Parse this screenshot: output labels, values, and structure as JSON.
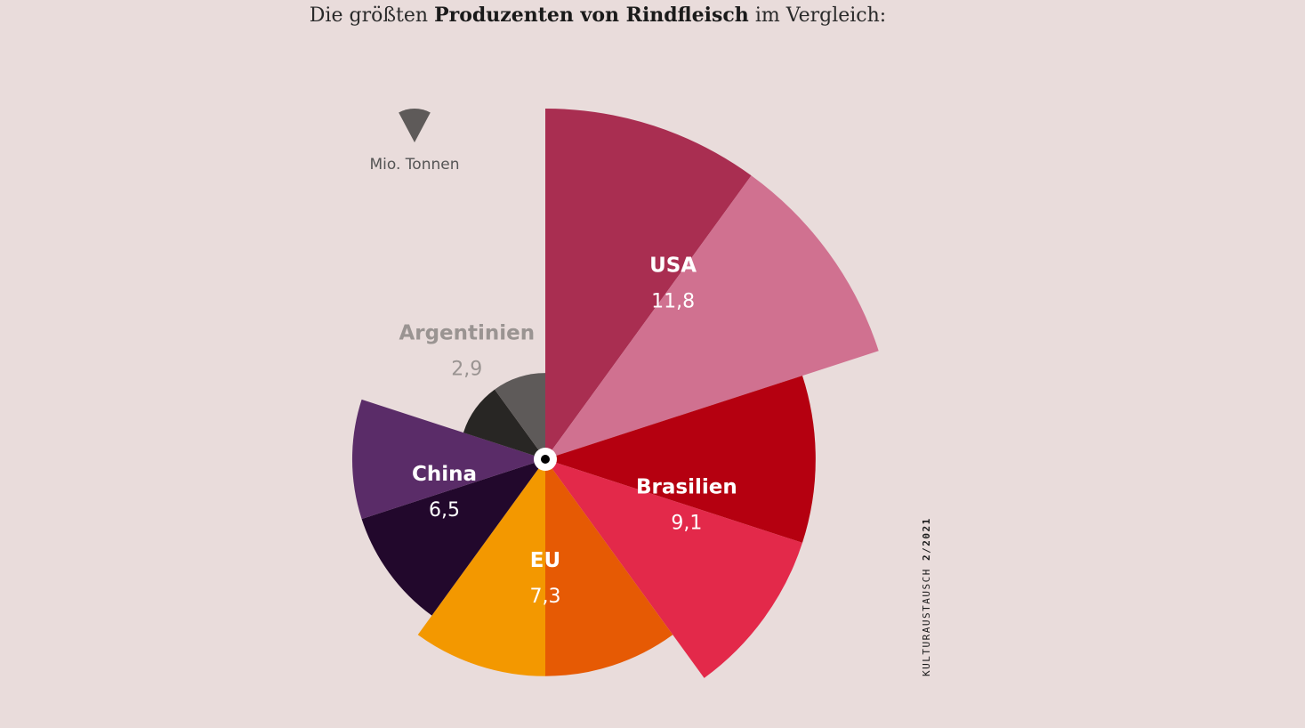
{
  "title": {
    "prefix": "Die größten",
    "bold": "Produzenten von Rindfleisch",
    "suffix": "im Vergleich:"
  },
  "legend": {
    "unit_label": "Mio. Tonnen",
    "icon_color": "#5e5a59"
  },
  "source": {
    "publication": "KULTURAUSTAUSCH",
    "issue": "2/2021"
  },
  "chart_data": {
    "type": "polar-area",
    "unit": "Mio. Tonnen",
    "series": [
      {
        "label": "USA",
        "value_text": "11,8",
        "value": 11.8,
        "colors": [
          "#a92e51",
          "#d07190"
        ],
        "label_color": "#ffffff"
      },
      {
        "label": "Brasilien",
        "value_text": "9,1",
        "value": 9.1,
        "colors": [
          "#b50010",
          "#e3294a"
        ],
        "label_color": "#ffffff"
      },
      {
        "label": "EU",
        "value_text": "7,3",
        "value": 7.3,
        "colors": [
          "#e65a04",
          "#f39800"
        ],
        "label_color": "#ffffff"
      },
      {
        "label": "China",
        "value_text": "6,5",
        "value": 6.5,
        "colors": [
          "#22082c",
          "#5a2c68"
        ],
        "label_color": "#ffffff"
      },
      {
        "label": "Argentinien",
        "value_text": "2,9",
        "value": 2.9,
        "colors": [
          "#282624",
          "#5e5a59"
        ],
        "label_color": "#9a9492"
      }
    ]
  }
}
